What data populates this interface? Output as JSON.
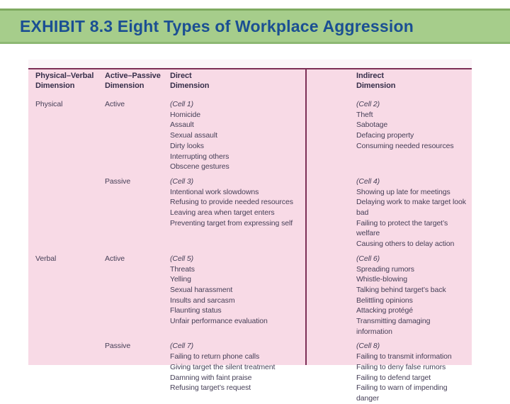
{
  "title": "EXHIBIT 8.3 Eight Types of Workplace Aggression",
  "colors": {
    "band_green": "#a6cd8b",
    "title_blue": "#1b4f93",
    "panel_pink": "#f8dae6",
    "rule_maroon": "#7c2e56",
    "table_text": "#474058"
  },
  "table": {
    "headers": [
      {
        "line1": "Physical–Verbal",
        "line2": "Dimension"
      },
      {
        "line1": "Active–Passive",
        "line2": "Dimension"
      },
      {
        "line1": "Direct",
        "line2": "Dimension"
      },
      {
        "line1": "Indirect",
        "line2": "Dimension"
      }
    ],
    "rows": [
      {
        "physical_verbal": "Physical",
        "active_passive": "Active",
        "direct": {
          "cell_label": "(Cell 1)",
          "items": [
            "Homicide",
            "Assault",
            "Sexual assault",
            "Dirty looks",
            "Interrupting others",
            "Obscene gestures"
          ]
        },
        "indirect": {
          "cell_label": "(Cell 2)",
          "items": [
            "Theft",
            "Sabotage",
            "Defacing property",
            "Consuming needed resources"
          ]
        }
      },
      {
        "physical_verbal": "",
        "active_passive": "Passive",
        "direct": {
          "cell_label": "(Cell 3)",
          "items": [
            "Intentional work slowdowns",
            "Refusing to provide needed resources",
            "Leaving area when target enters",
            "Preventing target from expressing self"
          ]
        },
        "indirect": {
          "cell_label": "(Cell 4)",
          "items": [
            "Showing up late for meetings",
            "Delaying work to make target look bad",
            "Failing to protect the target’s welfare",
            "Causing others to delay action"
          ]
        }
      },
      {
        "physical_verbal": "Verbal",
        "active_passive": "Active",
        "direct": {
          "cell_label": "(Cell 5)",
          "items": [
            "Threats",
            "Yelling",
            "Sexual harassment",
            "Insults and sarcasm",
            "Flaunting status",
            "Unfair performance evaluation"
          ]
        },
        "indirect": {
          "cell_label": "(Cell 6)",
          "items": [
            "Spreading rumors",
            "Whistle-blowing",
            "Talking behind target’s back",
            "Belittling opinions",
            "Attacking protégé",
            "Transmitting damaging information"
          ]
        }
      },
      {
        "physical_verbal": "",
        "active_passive": "Passive",
        "direct": {
          "cell_label": "(Cell 7)",
          "items": [
            "Failing to return phone calls",
            "Giving target the silent treatment",
            "Damning with faint praise",
            "Refusing target’s request"
          ]
        },
        "indirect": {
          "cell_label": "(Cell 8)",
          "items": [
            "Failing to transmit information",
            "Failing to deny false rumors",
            "Failing to defend target",
            "Failing to warn of impending danger"
          ]
        }
      }
    ]
  }
}
